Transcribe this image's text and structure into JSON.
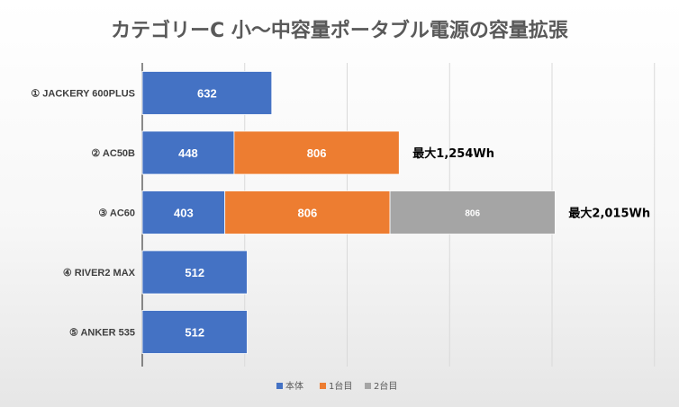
{
  "chart_data": {
    "type": "bar",
    "orientation": "horizontal",
    "stacked": true,
    "title": "カテゴリーC 小～中容量ポータブル電源の容量拡張",
    "categories": [
      "① JACKERY 600PLUS",
      "② AC50B",
      "③ AC60",
      "④ RIVER2 MAX",
      "⑤ ANKER 535"
    ],
    "series": [
      {
        "name": "本体",
        "color": "#4472c4",
        "values": [
          632,
          448,
          403,
          512,
          512
        ]
      },
      {
        "name": "1台目",
        "color": "#ed7d31",
        "values": [
          null,
          806,
          806,
          null,
          null
        ]
      },
      {
        "name": "2台目",
        "color": "#a5a5a5",
        "values": [
          null,
          null,
          806,
          null,
          null
        ]
      }
    ],
    "annotations": [
      {
        "category": "② AC50B",
        "text": "最大1,254Wh"
      },
      {
        "category": "③ AC60",
        "text": "最大2,015Wh"
      }
    ],
    "xlim": [
      0,
      2500
    ],
    "x_gridlines": [
      500,
      1000,
      1500,
      2000,
      2500
    ],
    "grid": true,
    "legend_position": "bottom"
  }
}
